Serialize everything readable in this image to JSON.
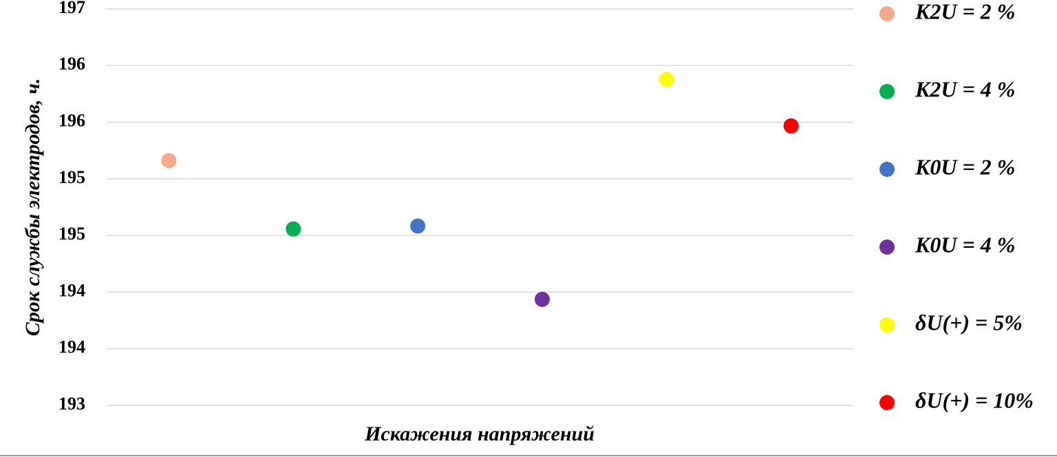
{
  "chart_data": {
    "type": "scatter",
    "y_label": "Срок службы  электродов, ч.",
    "x_label": "Искажения напряжений",
    "categories": [
      null,
      null,
      null,
      null,
      null,
      null
    ],
    "ylim": [
      193,
      197
    ],
    "yticks": [
      193,
      {
        "value": 193.571,
        "label": "194"
      },
      {
        "value": 194.143,
        "label": "194"
      },
      {
        "value": 194.714,
        "label": "195"
      },
      {
        "value": 195.286,
        "label": "195"
      },
      {
        "value": 195.857,
        "label": "196"
      },
      {
        "value": 196.429,
        "label": "196"
      },
      197
    ],
    "grid": true,
    "legend": "right",
    "series": [
      {
        "name": "K2U = 2 %",
        "color": "#f4a98a",
        "values": [
          195.47,
          null,
          null,
          null,
          null,
          null
        ]
      },
      {
        "name": "K2U = 4 %",
        "color": "#00b050",
        "values": [
          null,
          194.78,
          null,
          null,
          null,
          null
        ]
      },
      {
        "name": "K0U = 2 %",
        "color": "#4472c4",
        "values": [
          null,
          null,
          194.81,
          null,
          null,
          null
        ]
      },
      {
        "name": "K0U = 4 %",
        "color": "#7030a0",
        "values": [
          null,
          null,
          null,
          194.07,
          null,
          null
        ]
      },
      {
        "name": "δU(+) = 5%",
        "color": "#ffff00",
        "values": [
          null,
          null,
          null,
          null,
          196.29,
          null
        ]
      },
      {
        "name": "δU(+) = 10%",
        "color": "#ff0000",
        "values": [
          null,
          null,
          null,
          null,
          null,
          195.82
        ]
      }
    ]
  }
}
